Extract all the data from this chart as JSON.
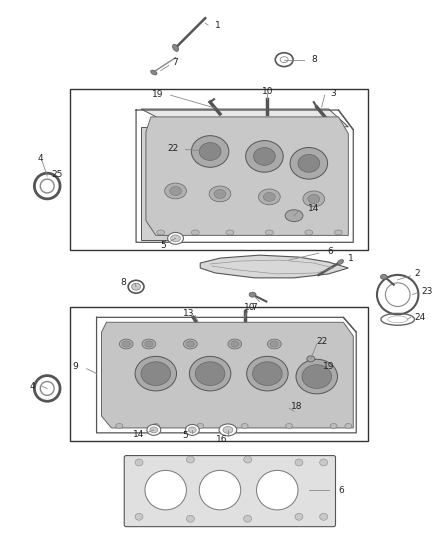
{
  "bg_color": "#ffffff",
  "fig_width": 4.38,
  "fig_height": 5.33,
  "dpi": 100,
  "line_color": "#444444",
  "label_color": "#222222",
  "label_fs": 6.5
}
